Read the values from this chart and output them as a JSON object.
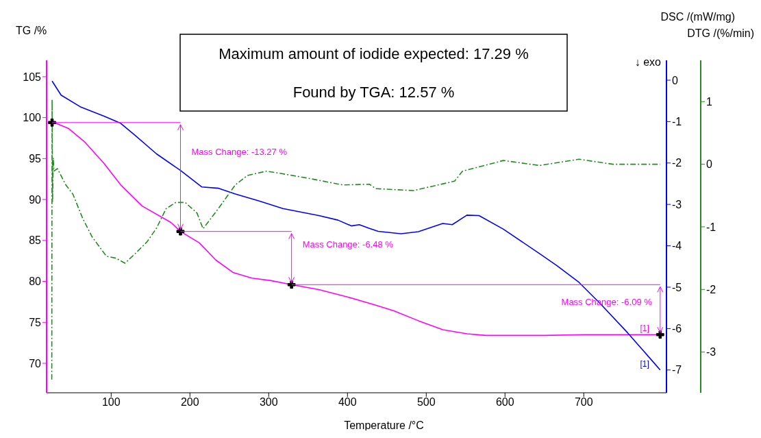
{
  "chart_data": {
    "type": "line",
    "xlabel": "Temperature /°C",
    "ylabel": "TG /%",
    "y2label": "DSC /(mW/mg)",
    "y3label": "DTG /(%/min)",
    "xlim": [
      18,
      805
    ],
    "xticks": [
      100,
      200,
      300,
      400,
      500,
      600,
      700
    ],
    "ylim": [
      66.4,
      107
    ],
    "yticks": [
      70,
      75,
      80,
      85,
      90,
      95,
      100,
      105
    ],
    "y2lim": [
      -7.55,
      0.48
    ],
    "y2ticks": [
      0,
      -1,
      -2,
      -3,
      -4,
      -5,
      -6,
      -7
    ],
    "y3lim": [
      -3.65,
      1.66
    ],
    "y3ticks": [
      1,
      0,
      -1,
      -2,
      -3
    ],
    "grid": false,
    "ref_lines": [
      {
        "axis": "y",
        "value": 99.4,
        "color": "#ff00ff"
      },
      {
        "axis": "y",
        "value": 86.1,
        "color": "#ff00ff"
      },
      {
        "axis": "y",
        "value": 79.6,
        "color": "#ff00ff"
      }
    ],
    "series": [
      {
        "type": "line",
        "color": "#ff00ff",
        "x": [
          25,
          45.5,
          66.7,
          91,
          112,
          139.4,
          175.8,
          188,
          212,
          233,
          254.6,
          278.8,
          303,
          329,
          363.7,
          400,
          436,
          459,
          490,
          521,
          552,
          576,
          600,
          650,
          700,
          750,
          797
        ],
        "values": [
          99.5,
          98.7,
          97,
          94.4,
          91.8,
          89.2,
          87.2,
          86.1,
          84.7,
          82.6,
          81.1,
          80.4,
          80.1,
          79.6,
          79,
          78.1,
          77.1,
          76.4,
          75.2,
          74.1,
          73.6,
          73.4,
          73.4,
          73.4,
          73.5,
          73.5,
          73.5
        ]
      },
      {
        "type": "line",
        "axis": "y2",
        "color": "#0000ff",
        "x": [
          25,
          36.4,
          60.6,
          91,
          112,
          130.3,
          157.6,
          188,
          215.2,
          236.4,
          257.6,
          288,
          318,
          363.7,
          388,
          405,
          415,
          428,
          439,
          468,
          490,
          521,
          533,
          551.6,
          567,
          598,
          644,
          666,
          693.7,
          721.6,
          755.6,
          786.5,
          797
        ],
        "values": [
          -0.02,
          -0.36,
          -0.64,
          -0.87,
          -1.04,
          -1.33,
          -1.78,
          -2.18,
          -2.58,
          -2.61,
          -2.75,
          -2.92,
          -3.1,
          -3.27,
          -3.38,
          -3.52,
          -3.49,
          -3.58,
          -3.65,
          -3.71,
          -3.66,
          -3.46,
          -3.49,
          -3.26,
          -3.27,
          -3.6,
          -4.19,
          -4.48,
          -4.88,
          -5.41,
          -6.1,
          -6.77,
          -7.0
        ]
      },
      {
        "type": "line",
        "axis": "y3",
        "color": "#228b22",
        "line_style": "dashed",
        "x": [
          24.6,
          25,
          25.6,
          26.5,
          27.3,
          31.8,
          42.4,
          51.5,
          63.7,
          75.8,
          94,
          106,
          117.6,
          130.3,
          145.5,
          157.6,
          169.7,
          182,
          194,
          209,
          216.7,
          236,
          257.6,
          272.8,
          297,
          312,
          348.5,
          394,
          428,
          436,
          484,
          536,
          546,
          598,
          644,
          694,
          737,
          797
        ],
        "values": [
          -3.44,
          1.03,
          -0.6,
          0.1,
          -0.11,
          -0.07,
          -0.33,
          -0.48,
          -0.86,
          -1.16,
          -1.47,
          -1.5,
          -1.58,
          -1.43,
          -1.24,
          -1.02,
          -0.71,
          -0.61,
          -0.61,
          -0.78,
          -1.03,
          -0.71,
          -0.33,
          -0.18,
          -0.11,
          -0.14,
          -0.22,
          -0.33,
          -0.32,
          -0.39,
          -0.42,
          -0.27,
          -0.11,
          0.06,
          -0.02,
          0.08,
          0,
          0
        ]
      },
      {
        "type": "scatter",
        "marker": "cross",
        "color": "#000000",
        "x": [
          25,
          188,
          329,
          797
        ],
        "values": [
          99.4,
          86.1,
          79.6,
          73.5
        ]
      }
    ],
    "annotations": [
      "Maximum amount of iodide expected: 17.29 %",
      "Found by TGA: 12.57 %",
      "↓ exo",
      "Mass Change: -13.27 %",
      "Mass Change: -6.48 %",
      "Mass Change: -6.09 %",
      "[1]",
      "[1]"
    ]
  }
}
